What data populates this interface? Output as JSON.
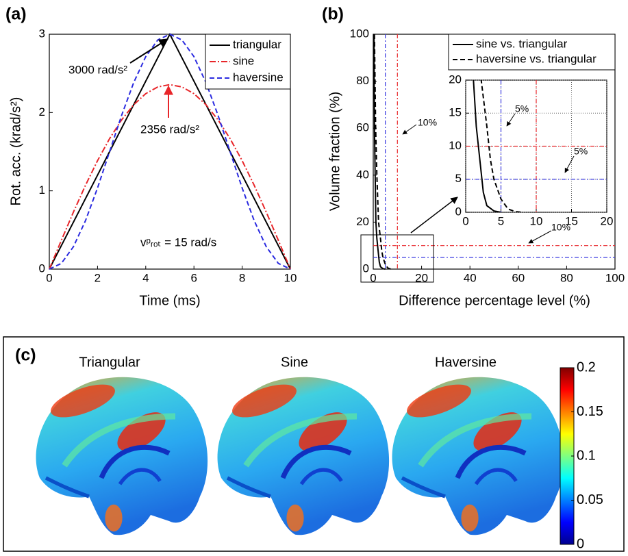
{
  "chart_data": [
    {
      "type": "line",
      "panel_label": "(a)",
      "xlabel": "Time (ms)",
      "ylabel": "Rot. acc. (krad/s²)",
      "x": [
        0,
        0.5,
        1,
        1.5,
        2,
        2.5,
        3,
        3.5,
        4,
        4.5,
        5,
        5.5,
        6,
        6.5,
        7,
        7.5,
        8,
        8.5,
        9,
        9.5,
        10
      ],
      "series": [
        {
          "name": "triangular",
          "color": "#000000",
          "dash": "solid",
          "values": [
            0,
            0.3,
            0.6,
            0.9,
            1.2,
            1.5,
            1.8,
            2.1,
            2.4,
            2.7,
            3,
            2.7,
            2.4,
            2.1,
            1.8,
            1.5,
            1.2,
            0.9,
            0.6,
            0.3,
            0
          ]
        },
        {
          "name": "sine",
          "color": "#e8262a",
          "dash": "dashdot",
          "values": [
            0,
            0.368,
            0.728,
            1.07,
            1.385,
            1.666,
            1.906,
            2.099,
            2.241,
            2.327,
            2.356,
            2.327,
            2.241,
            2.099,
            1.906,
            1.666,
            1.385,
            1.07,
            0.728,
            0.368,
            0
          ]
        },
        {
          "name": "haversine",
          "color": "#2a2ae0",
          "dash": "dashed",
          "values": [
            0,
            0.073,
            0.286,
            0.618,
            1.036,
            1.5,
            1.964,
            2.382,
            2.714,
            2.927,
            3,
            2.927,
            2.714,
            2.382,
            1.964,
            1.5,
            1.036,
            0.618,
            0.286,
            0.073,
            0
          ]
        }
      ],
      "xlim": [
        0,
        10
      ],
      "xticks": [
        0,
        2,
        4,
        6,
        8,
        10
      ],
      "ylim": [
        0,
        3
      ],
      "yticks": [
        0,
        1,
        2,
        3
      ],
      "annotations": [
        "3000 rad/s²",
        "2356 rad/s²",
        "vᵖᵣₒₜ = 15 rad/s"
      ],
      "legend": "upper right"
    },
    {
      "type": "line",
      "panel_label": "(b)",
      "xlabel": "Difference percentage level (%)",
      "ylabel": "Volume fraction (%)",
      "series": [
        {
          "name": "sine vs. triangular",
          "color": "#000000",
          "dash": "solid",
          "x": [
            0.3,
            0.5,
            0.8,
            1.1,
            1.5,
            2,
            2.5,
            3,
            4,
            5
          ],
          "values": [
            100,
            60,
            40,
            20,
            13,
            8,
            3,
            1,
            0.2,
            0
          ]
        },
        {
          "name": "haversine vs. triangular",
          "color": "#000000",
          "dash": "dashed",
          "x": [
            0.5,
            1,
            1.5,
            2.2,
            3,
            3.5,
            4,
            5,
            6,
            7,
            8
          ],
          "values": [
            100,
            60,
            40,
            20,
            13,
            8,
            5,
            2,
            0.5,
            0.1,
            0
          ]
        }
      ],
      "xlim": [
        0,
        100
      ],
      "xticks": [
        0,
        20,
        40,
        60,
        80,
        100
      ],
      "ylim": [
        0,
        100
      ],
      "yticks": [
        0,
        20,
        40,
        60,
        80,
        100
      ],
      "reference_lines": [
        {
          "axis": "x",
          "value": 5,
          "color": "#3a3ae0"
        },
        {
          "axis": "x",
          "value": 10,
          "color": "#e8262a"
        },
        {
          "axis": "y",
          "value": 10,
          "color": "#e8262a"
        },
        {
          "axis": "y",
          "value": 5,
          "color": "#3a3ae0"
        }
      ],
      "annotations": [
        "10%",
        "10%"
      ],
      "legend": "upper right",
      "inset": {
        "xlim": [
          0,
          20
        ],
        "ylim": [
          0,
          20
        ],
        "xticks": [
          0,
          5,
          10,
          15,
          20
        ],
        "yticks": [
          0,
          5,
          10,
          15,
          20
        ],
        "grid": true,
        "annotations": [
          "5%",
          "5%"
        ]
      }
    },
    {
      "type": "colormap",
      "panel_label": "(c)",
      "image_titles": [
        "Triangular",
        "Sine",
        "Haversine"
      ],
      "clim": [
        0,
        0.2
      ],
      "cticks": [
        0,
        0.05,
        0.1,
        0.15,
        0.2
      ],
      "colormap": "jet"
    }
  ]
}
